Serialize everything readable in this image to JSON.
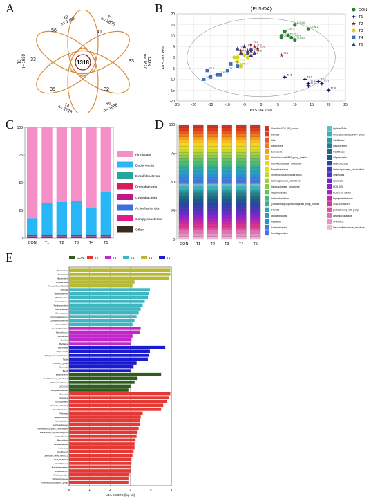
{
  "panels": {
    "A": "A",
    "B": "B",
    "C": "C",
    "D": "D",
    "E": "E"
  },
  "venn": {
    "center": "1318",
    "sets": [
      {
        "name": "T2",
        "n": "n= 1798",
        "unique": "56",
        "color": "#d98b3a"
      },
      {
        "name": "T1",
        "n": "n= 1808",
        "unique": "41",
        "color": "#d98b3a"
      },
      {
        "name": "T3",
        "n": "n= 1699",
        "unique": "33",
        "color": "#d98b3a"
      },
      {
        "name": "CON",
        "n": "n= 1820",
        "unique": "33",
        "color": "#d98b3a"
      },
      {
        "name": "T4",
        "n": "n= 1718",
        "unique": "35",
        "color": "#d98b3a"
      },
      {
        "name": "T5",
        "n": "n= 1686",
        "unique": "32",
        "color": "#d98b3a"
      }
    ]
  },
  "chart_data": [
    {
      "type": "scatter",
      "title": "(PLS-DA)",
      "xlabel": "PLS1=4.76%",
      "ylabel": "PLS2=3.39%",
      "xlim": [
        -25,
        25
      ],
      "ylim": [
        -20,
        20
      ],
      "xticks": [
        -25,
        -20,
        -15,
        -10,
        -5,
        0,
        5,
        10,
        15,
        20,
        25
      ],
      "yticks": [
        -20,
        -15,
        -10,
        -5,
        0,
        5,
        10,
        15,
        20
      ],
      "series": [
        {
          "name": "CON",
          "color": "#2e7d32",
          "marker": "circle",
          "points": [
            {
              "label": "CON-1",
              "x": 14,
              "y": 13
            },
            {
              "label": "CON-2",
              "x": 6,
              "y": 9
            },
            {
              "label": "CON-3",
              "x": 7,
              "y": 12
            },
            {
              "label": "CON-4",
              "x": 10,
              "y": 8
            },
            {
              "label": "CON-5",
              "x": 6,
              "y": 10
            },
            {
              "label": "CON-6",
              "x": 10,
              "y": 15
            },
            {
              "label": "CON-7",
              "x": 8,
              "y": 10
            },
            {
              "label": "CON-8",
              "x": 9,
              "y": 9
            }
          ]
        },
        {
          "name": "T1",
          "color": "#1a1a5e",
          "marker": "star4",
          "points": [
            {
              "label": "T1-1",
              "x": 13,
              "y": -10
            },
            {
              "label": "T1-2",
              "x": 7,
              "y": -9
            },
            {
              "label": "T1-3",
              "x": 17,
              "y": -11
            },
            {
              "label": "T1-4",
              "x": 7,
              "y": -9
            },
            {
              "label": "T1-5",
              "x": 14,
              "y": -12
            },
            {
              "label": "T1-6",
              "x": 20,
              "y": -15
            },
            {
              "label": "T1-7",
              "x": 18,
              "y": -12
            },
            {
              "label": "T1-8",
              "x": 14,
              "y": -13
            }
          ]
        },
        {
          "name": "T2",
          "color": "#8b1a1a",
          "marker": "star5",
          "points": [
            {
              "label": "T2-1",
              "x": 6,
              "y": 1
            },
            {
              "label": "T2-2",
              "x": -2,
              "y": 2
            },
            {
              "label": "T2-3",
              "x": -2,
              "y": 5
            },
            {
              "label": "T2-4",
              "x": -3,
              "y": 3
            },
            {
              "label": "T2-5",
              "x": -3,
              "y": 6
            },
            {
              "label": "T2-6",
              "x": -6,
              "y": 3
            },
            {
              "label": "T2-7",
              "x": -5,
              "y": 5
            },
            {
              "label": "T2-8",
              "x": -1,
              "y": 4
            }
          ]
        },
        {
          "name": "T3",
          "color": "#d4d41a",
          "marker": "circle",
          "points": [
            {
              "label": "T3-1",
              "x": -7,
              "y": -2
            },
            {
              "label": "T3-2",
              "x": -6,
              "y": -4
            },
            {
              "label": "T3-3",
              "x": -8,
              "y": 0
            },
            {
              "label": "T3-4",
              "x": -7,
              "y": 0
            },
            {
              "label": "T3-5",
              "x": -5,
              "y": 1
            },
            {
              "label": "T3-6",
              "x": -6,
              "y": 2
            },
            {
              "label": "T3-7",
              "x": -4,
              "y": 0
            },
            {
              "label": "T3-8",
              "x": -2,
              "y": 2
            }
          ]
        },
        {
          "name": "T4",
          "color": "#3b6fb6",
          "marker": "square",
          "points": [
            {
              "label": "T4-1",
              "x": -10,
              "y": -6
            },
            {
              "label": "T4-2",
              "x": -9,
              "y": -3
            },
            {
              "label": "T4-3",
              "x": -16,
              "y": -6
            },
            {
              "label": "T4-4",
              "x": -17,
              "y": -10
            },
            {
              "label": "T4-5",
              "x": -12,
              "y": -8
            },
            {
              "label": "T4-6",
              "x": -13,
              "y": -8
            },
            {
              "label": "T4-7",
              "x": -7,
              "y": -4
            },
            {
              "label": "T4-8",
              "x": -15,
              "y": -9
            }
          ]
        },
        {
          "name": "T5",
          "color": "#3a3a8c",
          "marker": "triangle",
          "points": [
            {
              "label": "T5-1",
              "x": -4,
              "y": 3
            },
            {
              "label": "T5-2",
              "x": -2,
              "y": 2
            },
            {
              "label": "T5-3",
              "x": -3,
              "y": 4
            },
            {
              "label": "T5-4",
              "x": -7,
              "y": 4
            },
            {
              "label": "T5-5",
              "x": -5,
              "y": 5
            },
            {
              "label": "T5-6",
              "x": -6,
              "y": 2
            },
            {
              "label": "T5-7",
              "x": -4,
              "y": 2
            },
            {
              "label": "T5-8",
              "x": -3,
              "y": 1
            }
          ]
        }
      ]
    },
    {
      "type": "bar",
      "stacked": true,
      "categories": [
        "CON",
        "T1",
        "T2",
        "T3",
        "T4",
        "T5"
      ],
      "ylim": [
        0,
        100
      ],
      "yticks": [
        0,
        25,
        50,
        75,
        100
      ],
      "series": [
        {
          "name": "Other",
          "color": "#3b2a1e",
          "values": [
            0.5,
            0.5,
            0.5,
            0.5,
            0.5,
            0.5
          ]
        },
        {
          "name": "Campylobacterota",
          "color": "#e01a8c",
          "values": [
            0.5,
            0.5,
            0.5,
            0.5,
            0.5,
            0.5
          ]
        },
        {
          "name": "Actinobacteriota",
          "color": "#3b6fe0",
          "values": [
            0.5,
            0.5,
            0.5,
            0.5,
            0.5,
            0.5
          ]
        },
        {
          "name": "Cyanobacteria",
          "color": "#c0178a",
          "values": [
            0.3,
            0.3,
            0.3,
            0.3,
            0.3,
            0.3
          ]
        },
        {
          "name": "Proteobacteria",
          "color": "#d81b60",
          "values": [
            1.2,
            1.2,
            1.2,
            1.2,
            1.2,
            1.2
          ]
        },
        {
          "name": "Desulfobacterota",
          "color": "#26a69a",
          "values": [
            0.5,
            0.5,
            0.5,
            0.5,
            0.5,
            0.5
          ]
        },
        {
          "name": "Bacteroidota",
          "color": "#29b6f6",
          "values": [
            14.5,
            28,
            29,
            30,
            24,
            38
          ]
        },
        {
          "name": "Firmicutes",
          "color": "#f48fc8",
          "values": [
            82,
            68.5,
            67.5,
            66.5,
            72.5,
            58.5
          ]
        }
      ]
    },
    {
      "type": "bar",
      "stacked": true,
      "categories": [
        "CON",
        "T1",
        "T2",
        "T3",
        "T4",
        "T5"
      ],
      "ylim": [
        0,
        100
      ],
      "yticks": [
        0,
        25,
        50,
        75,
        100
      ],
      "legend_col1": [
        "Clostridia UCG-014_norank",
        "Alistipes",
        "Other",
        "Bacteroides",
        "Barnesiella",
        "Clostridia vadinBB60 group_norank",
        "Ruminococcaceae_uncultured",
        "Faecalibacterium",
        "[Ruminococcus] torques group",
        "Lachnospiraceae_uncultured",
        "Oscillospiraceae_uncultured",
        "Negativibacillus",
        "Lachnoclostridium",
        "[Eubacterium] coprostanoligenes group_norank",
        "DTU089",
        "Ligilactobacillus",
        "Rikenella",
        "Colidextribacter",
        "Subdoligranulum"
      ],
      "legend_col2": [
        "Hydrias Skills",
        "Christensenellaceae R-7 group",
        "Oscillibacter",
        "Flavonifractor",
        "Oscillibacter",
        "Alloprevotella",
        "Butyricicoccus",
        "Lachnospiraceae_Unclassified",
        "Sellimonas",
        "Tyzzerella",
        "UCG-005",
        "UCG-010_norank",
        "Erysipelotrichaceae",
        "GCA-900066575",
        "[Eubacterium] hallii group",
        "Limosilactobacillus",
        "CHKCI001",
        "Desulfovibrionaceae_uncultured"
      ],
      "colors_col1": [
        "#c0392b",
        "#e03a1a",
        "#e8551f",
        "#f07b1a",
        "#f5a01a",
        "#f7bd1a",
        "#f4d21e",
        "#e3dc20",
        "#c6d826",
        "#a6d13a",
        "#88c94e",
        "#67bf63",
        "#4bb878",
        "#3aaf8f",
        "#2fa6a6",
        "#2aa0bf",
        "#2d8fd3",
        "#3b7fe2",
        "#4b6fe8"
      ],
      "colors_col2": [
        "#5cc2c6",
        "#37b0b8",
        "#1f9aa6",
        "#1c7f94",
        "#1a6a88",
        "#1a5a8c",
        "#2547a0",
        "#3a3cb4",
        "#4f32c2",
        "#6a2ac6",
        "#8a26c2",
        "#a826b4",
        "#c22aa2",
        "#d4358f",
        "#de4f9c",
        "#e26fb1",
        "#e892c4",
        "#f0b5d6"
      ]
    },
    {
      "type": "bar",
      "orientation": "horizontal",
      "xlabel": "LDA SCORE (log 10)",
      "xlim": [
        0,
        5
      ],
      "xticks": [
        0,
        1,
        2,
        3,
        4,
        5
      ],
      "legend": [
        {
          "name": "CON",
          "color": "#2e5e1e"
        },
        {
          "name": "T2",
          "color": "#e53935"
        },
        {
          "name": "T3",
          "color": "#c026c9"
        },
        {
          "name": "T4",
          "color": "#3fb6c0"
        },
        {
          "name": "T5",
          "color": "#b8b832"
        },
        {
          "name": "T1",
          "color": "#1a1ad0"
        }
      ],
      "groups": [
        {
          "name": "T5",
          "color": "#b8b832",
          "bars": [
            {
              "label": "Bacteroidota",
              "value": 4.95
            },
            {
              "label": "Bacteroidia",
              "value": 4.95
            },
            {
              "label": "Bacteroides",
              "value": 4.9
            },
            {
              "label": "Coriobacteriia",
              "value": 3.2
            },
            {
              "label": "Family_XIII_UCG_001",
              "value": 3.1
            }
          ]
        },
        {
          "name": "T4",
          "color": "#3fb6c0",
          "bars": [
            {
              "label": "DTU089",
              "value": 3.95
            },
            {
              "label": "Bacteroidaceae",
              "value": 3.9
            },
            {
              "label": "Butyricimonas",
              "value": 3.85
            },
            {
              "label": "Tannerellaceae",
              "value": 3.7
            },
            {
              "label": "Parabacteroides",
              "value": 3.6
            },
            {
              "label": "Rikenellaceae",
              "value": 3.5
            },
            {
              "label": "Gammaproteo",
              "value": 3.4
            },
            {
              "label": "Clostridia bacterium",
              "value": 3.3
            },
            {
              "label": "Christensenellaceae",
              "value": 3.2
            },
            {
              "label": "Monoglobales",
              "value": 3.1
            }
          ]
        },
        {
          "name": "T3",
          "color": "#c026c9",
          "bars": [
            {
              "label": "Desulfovibrionales",
              "value": 3.5
            },
            {
              "label": "Flavonifractor",
              "value": 3.45
            },
            {
              "label": "Bacillaceae",
              "value": 3.1
            },
            {
              "label": "Bacillus",
              "value": 3.05
            },
            {
              "label": "Bacillales",
              "value": 3.0
            }
          ]
        },
        {
          "name": "T1",
          "color": "#1a1ad0",
          "bars": [
            {
              "label": "Barnesiella",
              "value": 4.7
            },
            {
              "label": "Alloprevotella",
              "value": 3.95
            },
            {
              "label": "Hydrogenoanaerobacterium",
              "value": 3.9
            },
            {
              "label": "Tidola",
              "value": 3.85
            },
            {
              "label": "NK4A214_group",
              "value": 3.3
            },
            {
              "label": "Tyzzerella",
              "value": 3.15
            },
            {
              "label": "Bacilli",
              "value": 3.0
            }
          ]
        },
        {
          "name": "CON",
          "color": "#2e5e1e",
          "bars": [
            {
              "label": "Bacteroidetes",
              "value": 4.5
            },
            {
              "label": "Subdoligranulum_uncultured",
              "value": 3.35
            },
            {
              "label": "Christensenellaceae",
              "value": 3.2
            },
            {
              "label": "UCG_010",
              "value": 3.0
            },
            {
              "label": "Mycoplasmataceae",
              "value": 2.9
            }
          ]
        },
        {
          "name": "T2",
          "color": "#e53935",
          "bars": [
            {
              "label": "Clostridia",
              "value": 4.95
            },
            {
              "label": "Firmicutes",
              "value": 4.9
            },
            {
              "label": "Oscillospirales",
              "value": 4.8
            },
            {
              "label": "Clostridia_UCG_014",
              "value": 4.6
            },
            {
              "label": "Faecalibacterium",
              "value": 4.5
            },
            {
              "label": "Rikenella",
              "value": 3.6
            },
            {
              "label": "Negativibacillus",
              "value": 3.5
            },
            {
              "label": "Lachnospirales",
              "value": 3.45
            },
            {
              "label": "Lachnospiraceae",
              "value": 3.45
            },
            {
              "label": "Peptostreptococcales_Tissierellales",
              "value": 3.4
            },
            {
              "label": "Eubacterium_coprostanoligenes",
              "value": 3.35
            },
            {
              "label": "Colidextribacter",
              "value": 3.3
            },
            {
              "label": "Monoglobus",
              "value": 3.25
            },
            {
              "label": "Monoglobaceae",
              "value": 3.2
            },
            {
              "label": "Sellimonas",
              "value": 3.2
            },
            {
              "label": "Oscillibacter",
              "value": 3.15
            },
            {
              "label": "Clostridium_sensu_stricto_1",
              "value": 3.1
            },
            {
              "label": "UCG_SR9FNT1",
              "value": 3.05
            },
            {
              "label": "Clostridiaceae",
              "value": 3.05
            },
            {
              "label": "Acholeplasmatales",
              "value": 3.0
            },
            {
              "label": "Whitebacterium",
              "value": 3.0
            },
            {
              "label": "Whitebacteriales",
              "value": 2.95
            },
            {
              "label": "Whitebacteraceae",
              "value": 2.9
            },
            {
              "label": "Ruminococcus_gnavus_group",
              "value": 2.9
            }
          ]
        }
      ]
    }
  ]
}
